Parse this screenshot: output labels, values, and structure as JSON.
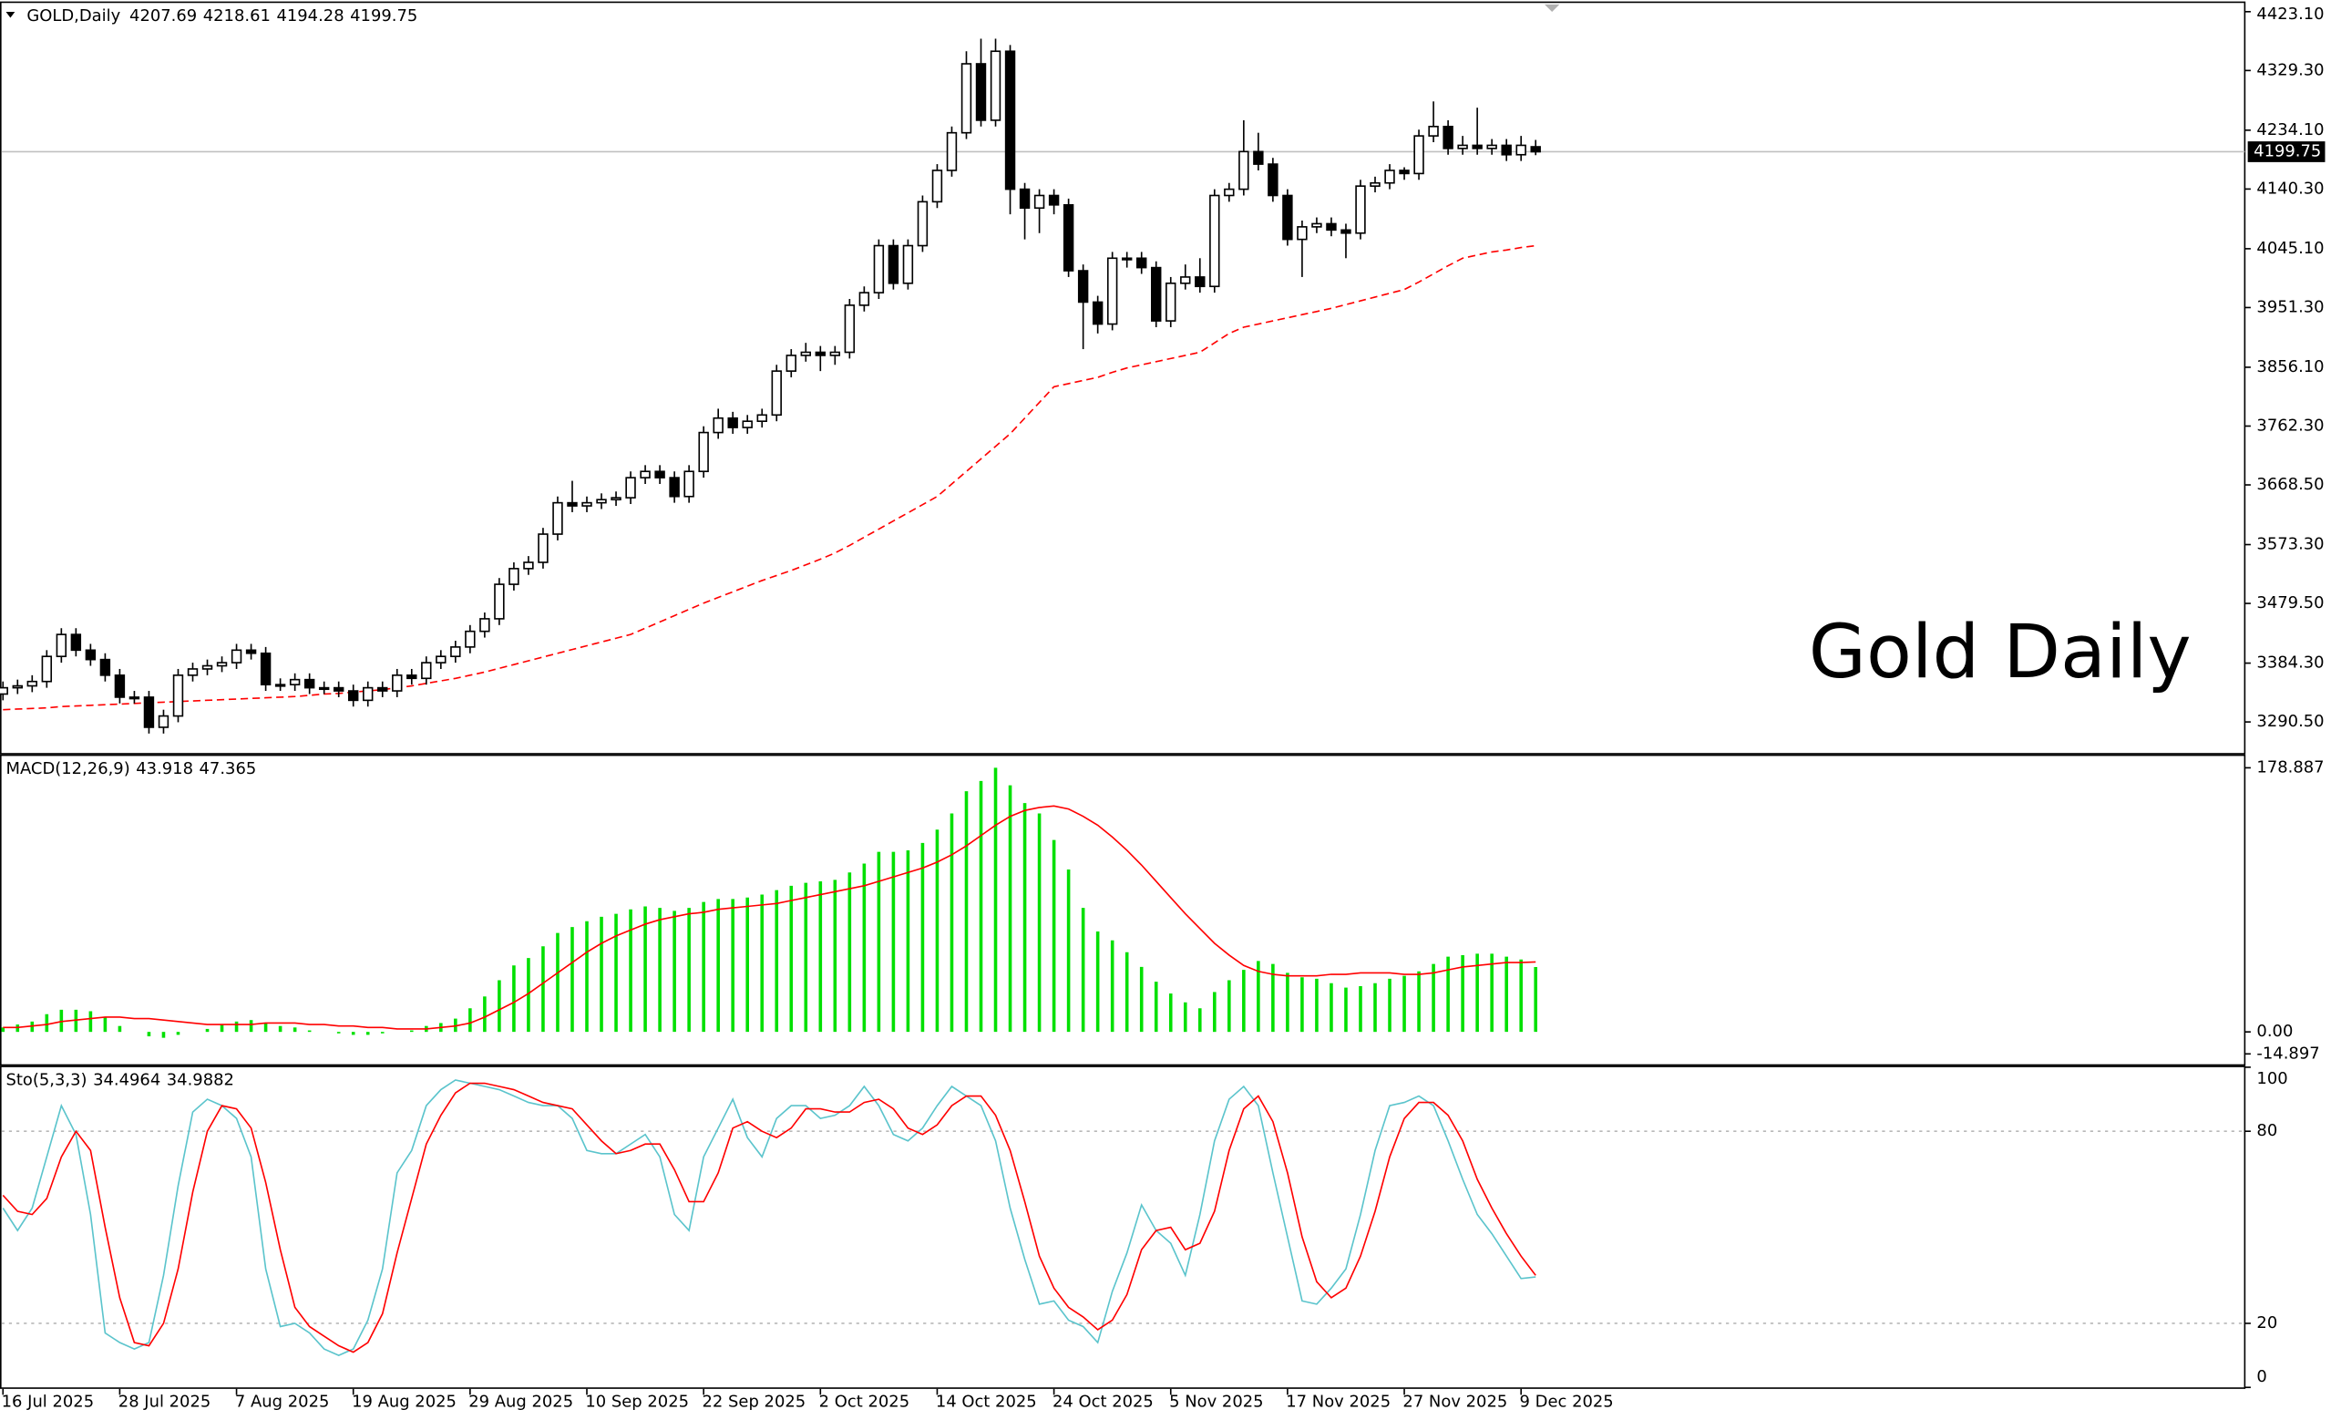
{
  "chart_data": [
    {
      "type": "candlestick",
      "title": "GOLD,Daily",
      "annotation": "Gold Daily",
      "categories": [
        "16 Jul 2025",
        null,
        null,
        null,
        null,
        null,
        null,
        null,
        "28 Jul 2025",
        null,
        null,
        null,
        null,
        null,
        null,
        null,
        "7 Aug 2025",
        null,
        null,
        null,
        null,
        null,
        null,
        null,
        "19 Aug 2025",
        null,
        null,
        null,
        null,
        null,
        null,
        null,
        "29 Aug 2025",
        null,
        null,
        null,
        null,
        null,
        null,
        null,
        "10 Sep 2025",
        null,
        null,
        null,
        null,
        null,
        null,
        null,
        "22 Sep 2025",
        null,
        null,
        null,
        null,
        null,
        null,
        null,
        "2 Oct 2025",
        null,
        null,
        null,
        null,
        null,
        null,
        null,
        "14 Oct 2025",
        null,
        null,
        null,
        null,
        null,
        null,
        null,
        "24 Oct 2025",
        null,
        null,
        null,
        null,
        null,
        null,
        null,
        "5 Nov 2025",
        null,
        null,
        null,
        null,
        null,
        null,
        null,
        "17 Nov 2025",
        null,
        null,
        null,
        null,
        null,
        null,
        null,
        "27 Nov 2025",
        null,
        null,
        null,
        null,
        null,
        null,
        null,
        "9 Dec 2025",
        null
      ],
      "open": [
        3335,
        3345,
        3348,
        3355,
        3395,
        3430,
        3405,
        3390,
        3365,
        3330,
        3330,
        3282,
        3300,
        3365,
        3375,
        3380,
        3385,
        3405,
        3400,
        3350,
        3350,
        3358,
        3345,
        3345,
        3340,
        3325,
        3345,
        3340,
        3365,
        3360,
        3385,
        3395,
        3410,
        3435,
        3455,
        3510,
        3535,
        3545,
        3590,
        3640,
        3635,
        3640,
        3645,
        3648,
        3680,
        3690,
        3680,
        3650,
        3690,
        3752,
        3775,
        3760,
        3770,
        3780,
        3850,
        3875,
        3880,
        3875,
        3880,
        3955,
        3975,
        4050,
        3990,
        4050,
        4120,
        4170,
        4230,
        4340,
        4250,
        4360,
        4140,
        4110,
        4130,
        4115,
        4010,
        3960,
        3925,
        4030,
        4030,
        4015,
        3930,
        3990,
        4000,
        3985,
        4130,
        4140,
        4200,
        4180,
        4130,
        4060,
        4080,
        4085,
        4075,
        4070,
        4145,
        4150,
        4170,
        4165,
        4225,
        4240,
        4205,
        4210,
        4205,
        4210,
        4195,
        4207.69
      ],
      "high": [
        3355,
        3358,
        3365,
        3405,
        3440,
        3440,
        3415,
        3400,
        3375,
        3340,
        3340,
        3310,
        3375,
        3385,
        3390,
        3395,
        3415,
        3415,
        3410,
        3360,
        3368,
        3368,
        3355,
        3355,
        3350,
        3355,
        3355,
        3375,
        3375,
        3395,
        3405,
        3420,
        3445,
        3465,
        3520,
        3545,
        3555,
        3600,
        3650,
        3675,
        3650,
        3655,
        3658,
        3690,
        3700,
        3700,
        3690,
        3700,
        3762,
        3790,
        3785,
        3780,
        3790,
        3860,
        3885,
        3895,
        3890,
        3890,
        3965,
        3985,
        4060,
        4060,
        4060,
        4130,
        4180,
        4240,
        4360,
        4380,
        4380,
        4370,
        4150,
        4140,
        4140,
        4125,
        4020,
        3970,
        4040,
        4040,
        4040,
        4025,
        4000,
        4020,
        4030,
        4140,
        4150,
        4250,
        4230,
        4190,
        4140,
        4090,
        4095,
        4095,
        4085,
        4155,
        4160,
        4180,
        4175,
        4235,
        4280,
        4250,
        4225,
        4270,
        4220,
        4220,
        4225,
        4218.61
      ],
      "low": [
        3325,
        3335,
        3338,
        3345,
        3385,
        3395,
        3380,
        3355,
        3320,
        3320,
        3272,
        3272,
        3290,
        3355,
        3365,
        3370,
        3375,
        3390,
        3340,
        3340,
        3340,
        3335,
        3335,
        3330,
        3315,
        3315,
        3330,
        3330,
        3350,
        3350,
        3375,
        3385,
        3400,
        3425,
        3445,
        3500,
        3525,
        3535,
        3580,
        3625,
        3625,
        3630,
        3635,
        3638,
        3670,
        3670,
        3640,
        3640,
        3680,
        3742,
        3750,
        3750,
        3760,
        3770,
        3840,
        3865,
        3850,
        3860,
        3870,
        3945,
        3965,
        3980,
        3980,
        4040,
        4110,
        4160,
        4220,
        4240,
        4240,
        4100,
        4060,
        4070,
        4100,
        4000,
        3885,
        3910,
        3915,
        4015,
        4005,
        3920,
        3920,
        3980,
        3975,
        3975,
        4120,
        4130,
        4170,
        4120,
        4050,
        4000,
        4070,
        4065,
        4030,
        4060,
        4135,
        4140,
        4155,
        4155,
        4215,
        4195,
        4195,
        4195,
        4195,
        4185,
        4185,
        4194.28
      ],
      "close": [
        3345,
        3348,
        3355,
        3395,
        3430,
        3405,
        3390,
        3365,
        3330,
        3330,
        3282,
        3300,
        3365,
        3375,
        3380,
        3385,
        3405,
        3400,
        3350,
        3350,
        3358,
        3345,
        3345,
        3340,
        3325,
        3345,
        3340,
        3365,
        3360,
        3385,
        3395,
        3410,
        3435,
        3455,
        3510,
        3535,
        3545,
        3590,
        3640,
        3635,
        3640,
        3645,
        3648,
        3680,
        3690,
        3680,
        3650,
        3690,
        3752,
        3775,
        3760,
        3770,
        3780,
        3850,
        3875,
        3880,
        3875,
        3880,
        3955,
        3975,
        4050,
        3990,
        4050,
        4120,
        4170,
        4230,
        4340,
        4250,
        4360,
        4140,
        4110,
        4130,
        4115,
        4010,
        3960,
        3925,
        4030,
        4030,
        4015,
        3930,
        3990,
        4000,
        3985,
        4130,
        4140,
        4200,
        4180,
        4130,
        4060,
        4080,
        4085,
        4075,
        4070,
        4145,
        4150,
        4170,
        4165,
        4225,
        4240,
        4205,
        4210,
        4205,
        4210,
        4195,
        4210,
        4199.75
      ],
      "up_color": "#ffffff",
      "down_color": "#000000",
      "overlay": {
        "color": "#ff0000",
        "dashed": true,
        "values": [
          3310,
          3311,
          3312,
          3313,
          3315,
          3316,
          3317,
          3318,
          3319,
          3320,
          3321,
          3322,
          3323,
          3324,
          3325,
          3326,
          3327,
          3328,
          3329,
          3330,
          3331,
          3333,
          3335,
          3336,
          3338,
          3340,
          3342,
          3345,
          3348,
          3352,
          3356,
          3360,
          3365,
          3370,
          3376,
          3382,
          3388,
          3394,
          3400,
          3406,
          3412,
          3418,
          3424,
          3430,
          3440,
          3450,
          3460,
          3470,
          3480,
          3489,
          3498,
          3507,
          3516,
          3524,
          3532,
          3541,
          3550,
          3560,
          3572,
          3585,
          3598,
          3611,
          3624,
          3637,
          3650,
          3670,
          3690,
          3710,
          3730,
          3750,
          3775,
          3800,
          3825,
          3830,
          3835,
          3840,
          3848,
          3855,
          3860,
          3865,
          3870,
          3875,
          3880,
          3895,
          3910,
          3920,
          3925,
          3930,
          3935,
          3940,
          3945,
          3950,
          3956,
          3962,
          3968,
          3974,
          3980,
          3992,
          4005,
          4018,
          4030,
          4035,
          4040,
          4043,
          4047,
          4050
        ]
      },
      "current_price_line": true,
      "ylim": [
        3241,
        4437
      ],
      "yticks": [
        {
          "value": 4423.1,
          "label": "4423.10"
        },
        {
          "value": 4329.3,
          "label": "4329.30"
        },
        {
          "value": 4234.1,
          "label": "4234.10"
        },
        {
          "value": 4140.3,
          "label": "4140.30"
        },
        {
          "value": 4045.1,
          "label": "4045.10"
        },
        {
          "value": 3951.3,
          "label": "3951.30"
        },
        {
          "value": 3856.1,
          "label": "3856.10"
        },
        {
          "value": 3762.3,
          "label": "3762.30"
        },
        {
          "value": 3668.5,
          "label": "3668.50"
        },
        {
          "value": 3573.3,
          "label": "3573.30"
        },
        {
          "value": 3479.5,
          "label": "3479.50"
        },
        {
          "value": 3384.3,
          "label": "3384.30"
        },
        {
          "value": 3290.5,
          "label": "3290.50"
        }
      ]
    },
    {
      "type": "macd",
      "title": "MACD(12,26,9)",
      "histogram": {
        "color": "#00e000",
        "values": [
          3,
          5,
          7,
          12,
          15,
          15,
          14,
          10,
          4,
          0,
          -3,
          -4,
          -2,
          0,
          2,
          5,
          7,
          8,
          6,
          4,
          3,
          1,
          0,
          -1,
          -2,
          -2,
          -1,
          0,
          1,
          4,
          6,
          9,
          16,
          24,
          35,
          45,
          50,
          58,
          67,
          71,
          75,
          78,
          80,
          83,
          85,
          84,
          82,
          84,
          88,
          90,
          90,
          91,
          93,
          96,
          99,
          101,
          102,
          103,
          108,
          114,
          122,
          122,
          123,
          128,
          137,
          148,
          163,
          170,
          178.887,
          167,
          155,
          148,
          130,
          110,
          84,
          68,
          62,
          54,
          44,
          34,
          26,
          20,
          16,
          27,
          35,
          42,
          48,
          46,
          40,
          37,
          36,
          33,
          30,
          31,
          33,
          36,
          38,
          41,
          46,
          51,
          52,
          53,
          53,
          51,
          49,
          43.918
        ]
      },
      "signal": {
        "color": "#ff0000",
        "values": [
          3,
          3,
          4,
          5,
          7,
          8,
          9,
          10,
          10,
          9,
          9,
          8,
          7,
          6,
          5,
          5,
          5,
          5,
          6,
          6,
          6,
          5,
          5,
          4,
          4,
          3,
          3,
          2,
          2,
          2,
          3,
          4,
          6,
          10,
          15,
          20,
          26,
          33,
          40,
          47,
          54,
          60,
          65,
          69,
          73,
          76,
          78,
          80,
          81,
          83,
          84,
          85,
          86,
          87,
          89,
          91,
          93,
          95,
          97,
          99,
          102,
          105,
          108,
          111,
          115,
          120,
          126,
          133,
          140,
          146,
          150,
          152,
          153,
          151,
          146,
          140,
          132,
          123,
          113,
          102,
          91,
          80,
          70,
          60,
          52,
          45,
          41,
          39,
          38,
          38,
          38,
          39,
          39,
          40,
          40,
          40,
          39,
          39,
          40,
          42,
          44,
          45,
          46,
          47,
          47,
          47.365
        ]
      },
      "ylim": [
        -14.897,
        178.887
      ],
      "yticks": [
        178.887,
        {
          "value": 0,
          "label": "0.00"
        },
        -14.897
      ]
    },
    {
      "type": "stochastic",
      "title": "Sto(5,3,3)",
      "main": {
        "color": "#5bc4cc",
        "values": [
          56,
          49,
          56,
          72,
          88,
          79,
          54,
          17,
          14,
          12,
          14,
          35,
          63,
          86,
          90,
          88,
          84,
          72,
          37,
          19,
          20,
          17,
          12,
          10,
          12,
          21,
          37,
          67,
          74,
          88,
          93,
          96,
          95,
          94,
          93,
          91,
          89,
          88,
          88,
          84,
          74,
          73,
          73,
          76,
          79,
          72,
          54,
          49,
          72,
          81,
          90,
          78,
          72,
          84,
          88,
          88,
          84,
          85,
          88,
          94,
          88,
          79,
          77,
          81,
          88,
          94,
          91,
          88,
          77,
          56,
          40,
          26,
          27,
          21,
          19,
          14,
          30,
          42,
          57,
          49,
          45,
          35,
          54,
          77,
          90,
          94,
          88,
          67,
          47,
          27,
          26,
          31,
          37,
          54,
          74,
          88,
          89,
          91,
          88,
          77,
          65,
          54,
          48,
          41,
          34,
          34.4964
        ]
      },
      "signal": {
        "color": "#ff0000",
        "values": [
          60,
          55,
          54,
          59,
          72,
          80,
          74,
          50,
          28,
          14,
          13,
          20,
          37,
          61,
          80,
          88,
          87,
          81,
          64,
          43,
          25,
          19,
          16,
          13,
          11,
          14,
          23,
          42,
          59,
          76,
          85,
          92,
          95,
          95,
          94,
          93,
          91,
          89,
          88,
          87,
          82,
          77,
          73,
          74,
          76,
          76,
          68,
          58,
          58,
          67,
          81,
          83,
          80,
          78,
          81,
          87,
          87,
          86,
          86,
          89,
          90,
          87,
          81,
          79,
          82,
          88,
          91,
          91,
          85,
          74,
          58,
          41,
          31,
          25,
          22,
          18,
          21,
          29,
          43,
          49,
          50,
          43,
          45,
          55,
          74,
          87,
          91,
          83,
          67,
          47,
          33,
          28,
          31,
          41,
          55,
          72,
          84,
          89,
          89,
          85,
          77,
          65,
          56,
          48,
          41,
          34.9882
        ]
      },
      "level_lines": true,
      "ylim": [
        0,
        100
      ],
      "yticks": [
        100,
        80,
        20,
        0
      ]
    }
  ]
}
